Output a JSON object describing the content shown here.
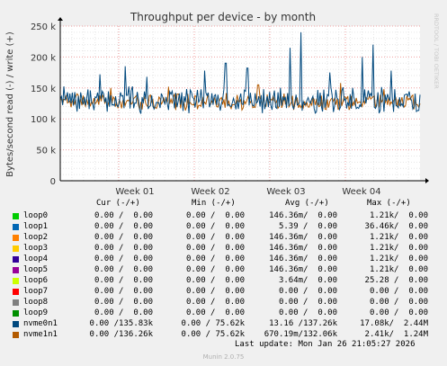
{
  "chart_data": {
    "type": "line",
    "title": "Throughput per device - by month",
    "ylabel": "Bytes/second read (-) / write (+)",
    "watermark": "RRDTOOL / TOBI OETIKER",
    "ylim": [
      0,
      250000
    ],
    "yticks": [
      "0",
      "50 k",
      "100 k",
      "150 k",
      "200 k",
      "250 k"
    ],
    "xticks": [
      "Week 01",
      "Week 02",
      "Week 03",
      "Week 04"
    ],
    "grid": true,
    "series": [
      {
        "name": "nvme0n1",
        "color": "#00487d",
        "baseline": 130000,
        "spread": 18000,
        "seed": 7,
        "spikes": [
          [
            0.11,
            172000
          ],
          [
            0.18,
            185000
          ],
          [
            0.24,
            168000
          ],
          [
            0.4,
            178000
          ],
          [
            0.46,
            190000
          ],
          [
            0.52,
            182000
          ],
          [
            0.64,
            215000
          ],
          [
            0.67,
            240000
          ],
          [
            0.75,
            175000
          ],
          [
            0.84,
            200000
          ],
          [
            0.87,
            220000
          ],
          [
            0.92,
            178000
          ]
        ]
      },
      {
        "name": "nvme1n1",
        "color": "#b35a00",
        "baseline": 128000,
        "spread": 12000,
        "seed": 19,
        "spikes": [
          [
            0.14,
            150000
          ],
          [
            0.3,
            152000
          ],
          [
            0.55,
            155000
          ],
          [
            0.78,
            158000
          ],
          [
            0.9,
            148000
          ]
        ]
      }
    ]
  },
  "legend": {
    "headers": {
      "cur": "Cur (-/+)",
      "min": "Min (-/+)",
      "avg": "Avg (-/+)",
      "max": "Max (-/+)"
    },
    "rows": [
      {
        "name": "loop0",
        "color": "#00cc00",
        "cur": "0.00 /  0.00",
        "min": "0.00 /  0.00",
        "avg": "146.36m/  0.00",
        "max": "1.21k/  0.00"
      },
      {
        "name": "loop1",
        "color": "#0066b3",
        "cur": "0.00 /  0.00",
        "min": "0.00 /  0.00",
        "avg": "5.39 /  0.00",
        "max": "36.46k/  0.00"
      },
      {
        "name": "loop2",
        "color": "#ff8000",
        "cur": "0.00 /  0.00",
        "min": "0.00 /  0.00",
        "avg": "146.36m/  0.00",
        "max": "1.21k/  0.00"
      },
      {
        "name": "loop3",
        "color": "#ffcc00",
        "cur": "0.00 /  0.00",
        "min": "0.00 /  0.00",
        "avg": "146.36m/  0.00",
        "max": "1.21k/  0.00"
      },
      {
        "name": "loop4",
        "color": "#330099",
        "cur": "0.00 /  0.00",
        "min": "0.00 /  0.00",
        "avg": "146.36m/  0.00",
        "max": "1.21k/  0.00"
      },
      {
        "name": "loop5",
        "color": "#990099",
        "cur": "0.00 /  0.00",
        "min": "0.00 /  0.00",
        "avg": "146.36m/  0.00",
        "max": "1.21k/  0.00"
      },
      {
        "name": "loop6",
        "color": "#ccff00",
        "cur": "0.00 /  0.00",
        "min": "0.00 /  0.00",
        "avg": "3.64m/  0.00",
        "max": "25.28 /  0.00"
      },
      {
        "name": "loop7",
        "color": "#ff0000",
        "cur": "0.00 /  0.00",
        "min": "0.00 /  0.00",
        "avg": "0.00 /  0.00",
        "max": "0.00 /  0.00"
      },
      {
        "name": "loop8",
        "color": "#808080",
        "cur": "0.00 /  0.00",
        "min": "0.00 /  0.00",
        "avg": "0.00 /  0.00",
        "max": "0.00 /  0.00"
      },
      {
        "name": "loop9",
        "color": "#008f00",
        "cur": "0.00 /  0.00",
        "min": "0.00 /  0.00",
        "avg": "0.00 /  0.00",
        "max": "0.00 /  0.00"
      },
      {
        "name": "nvme0n1",
        "color": "#00487d",
        "cur": "0.00 /135.83k",
        "min": "0.00 / 75.62k",
        "avg": "13.16 /137.26k",
        "max": "17.08k/  2.44M"
      },
      {
        "name": "nvme1n1",
        "color": "#b35a00",
        "cur": "0.00 /136.26k",
        "min": "0.00 / 75.62k",
        "avg": "670.19m/132.06k",
        "max": "2.41k/  1.24M"
      }
    ]
  },
  "last_update": "Last update: Mon Jan 26 21:05:27 2026",
  "footer": "Munin 2.0.75"
}
